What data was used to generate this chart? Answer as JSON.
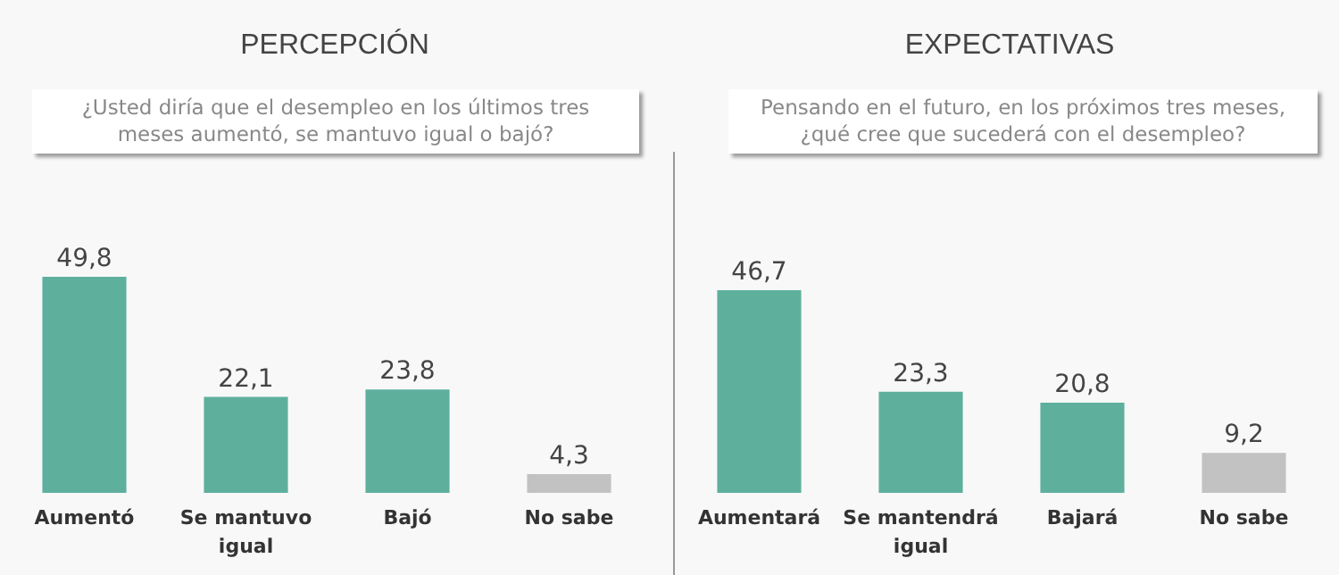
{
  "chart_data": [
    {
      "type": "bar",
      "title": "PERCEPCIÓN",
      "subtitle": "¿Usted diría que el desempleo en los últimos tres meses aumentó, se mantuvo igual o bajó?",
      "categories": [
        "Aumentó",
        "Se mantuvo igual",
        "Bajó",
        "No sabe"
      ],
      "values": [
        49.8,
        22.1,
        23.8,
        4.3
      ],
      "value_labels": [
        "49,8",
        "22,1",
        "23,8",
        "4,3"
      ],
      "colors": [
        "#5eb09d",
        "#5eb09d",
        "#5eb09d",
        "#c2c2c2"
      ]
    },
    {
      "type": "bar",
      "title": "EXPECTATIVAS",
      "subtitle": "Pensando en el futuro, en los próximos tres meses, ¿qué cree que sucederá con el desempleo?",
      "categories": [
        "Aumentará",
        "Se mantendrá igual",
        "Bajará",
        "No sabe"
      ],
      "values": [
        46.7,
        23.3,
        20.8,
        9.2
      ],
      "value_labels": [
        "46,7",
        "23,3",
        "20,8",
        "9,2"
      ],
      "colors": [
        "#5eb09d",
        "#5eb09d",
        "#5eb09d",
        "#c2c2c2"
      ]
    }
  ]
}
